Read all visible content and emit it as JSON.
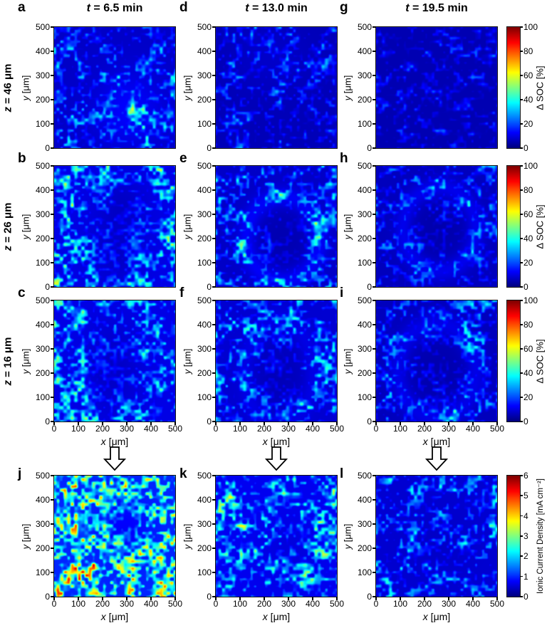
{
  "figure": {
    "background": "#ffffff",
    "columns": [
      {
        "id": "col1",
        "title_var": "t",
        "title_rest": " = 6.5 min",
        "time_min": 6.5
      },
      {
        "id": "col2",
        "title_var": "t",
        "title_rest": " = 13.0 min",
        "time_min": 13.0
      },
      {
        "id": "col3",
        "title_var": "t",
        "title_rest": " = 19.5 min",
        "time_min": 19.5
      }
    ],
    "rows": [
      {
        "id": "row-z46",
        "label_var": "z",
        "label_rest": " = 46 μm",
        "z_um": 46
      },
      {
        "id": "row-z26",
        "label_var": "z",
        "label_rest": " = 26 μm",
        "z_um": 26
      },
      {
        "id": "row-z16",
        "label_var": "z",
        "label_rest": " = 16 μm",
        "z_um": 16
      },
      {
        "id": "row-current",
        "label_var": "",
        "label_rest": ""
      }
    ]
  },
  "axes": {
    "x_var": "x",
    "x_unit": " [μm]",
    "y_var": "y",
    "y_unit": " [μm]",
    "ticks": [
      "0",
      "100",
      "200",
      "300",
      "400",
      "500"
    ]
  },
  "colorbars": {
    "soc": {
      "label": "Δ SOC [%]",
      "ticks": [
        "0",
        "20",
        "40",
        "60",
        "80",
        "100"
      ],
      "min": 0,
      "max": 100
    },
    "current": {
      "label": "Ionic Current Density [mA cm⁻²]",
      "ticks": [
        "0",
        "1",
        "2",
        "3",
        "4",
        "5",
        "6"
      ],
      "min": 0,
      "max": 6
    }
  },
  "icons": {
    "down_arrow": "hollow-down-arrow"
  },
  "colors": {
    "jet_low": "#000080",
    "jet_cyan": "#00ffff",
    "jet_yellow": "#ffff00",
    "jet_high": "#800000",
    "axis_line": "#141414",
    "text": "#000000"
  },
  "chart_data": {
    "type": "heatmap",
    "colormap": "jet",
    "x_range_um": [
      0,
      500
    ],
    "y_range_um": [
      0,
      500
    ],
    "soc_scale_pct": [
      0,
      100
    ],
    "current_scale_mA_cm2": [
      0,
      6
    ],
    "panels": [
      {
        "letter": "a",
        "row": 0,
        "col": 0,
        "quantity": "Δ SOC [%]",
        "time_min": 6.5,
        "z_um": 46,
        "gen": {
          "seed": 11,
          "base": 0.07,
          "amp": 0.4,
          "pow": 1.5,
          "thr": 0.42,
          "spots": [
            {
              "x": 0.62,
              "y": 0.68,
              "rx": 0.26,
              "ry": 0.3,
              "v": 0.16
            }
          ]
        }
      },
      {
        "letter": "d",
        "row": 0,
        "col": 1,
        "quantity": "Δ SOC [%]",
        "time_min": 13.0,
        "z_um": 46,
        "gen": {
          "seed": 12,
          "base": 0.055,
          "amp": 0.33,
          "pow": 1.6,
          "thr": 0.44,
          "spots": [
            {
              "x": 0.45,
              "y": 0.25,
              "rx": 0.3,
              "ry": 0.25,
              "v": 0.05
            }
          ]
        }
      },
      {
        "letter": "g",
        "row": 0,
        "col": 2,
        "quantity": "Δ SOC [%]",
        "time_min": 19.5,
        "z_um": 46,
        "gen": {
          "seed": 13,
          "base": 0.05,
          "amp": 0.24,
          "pow": 1.7,
          "thr": 0.46,
          "spots": []
        }
      },
      {
        "letter": "b",
        "row": 1,
        "col": 0,
        "quantity": "Δ SOC [%]",
        "time_min": 6.5,
        "z_um": 26,
        "gen": {
          "seed": 21,
          "base": 0.1,
          "amp": 0.6,
          "pow": 1.35,
          "thr": 0.4,
          "spots": [
            {
              "x": 0.56,
              "y": 0.34,
              "rx": 0.21,
              "ry": 0.26,
              "v": -0.3
            },
            {
              "x": 0.5,
              "y": 0.72,
              "rx": 0.24,
              "ry": 0.26,
              "v": -0.28
            }
          ]
        }
      },
      {
        "letter": "e",
        "row": 1,
        "col": 1,
        "quantity": "Δ SOC [%]",
        "time_min": 13.0,
        "z_um": 26,
        "gen": {
          "seed": 22,
          "base": 0.07,
          "amp": 0.46,
          "pow": 1.45,
          "thr": 0.42,
          "spots": [
            {
              "x": 0.55,
              "y": 0.6,
              "rx": 0.26,
              "ry": 0.3,
              "v": -0.28,
              "ring": 0.22
            }
          ]
        }
      },
      {
        "letter": "h",
        "row": 1,
        "col": 2,
        "quantity": "Δ SOC [%]",
        "time_min": 19.5,
        "z_um": 26,
        "gen": {
          "seed": 23,
          "base": 0.06,
          "amp": 0.34,
          "pow": 1.5,
          "thr": 0.43,
          "spots": [
            {
              "x": 0.52,
              "y": 0.52,
              "rx": 0.26,
              "ry": 0.3,
              "v": -0.24,
              "ring": 0.2
            }
          ]
        }
      },
      {
        "letter": "c",
        "row": 2,
        "col": 0,
        "quantity": "Δ SOC [%]",
        "time_min": 6.5,
        "z_um": 16,
        "gen": {
          "seed": 31,
          "base": 0.1,
          "amp": 0.56,
          "pow": 1.35,
          "thr": 0.4,
          "spots": [
            {
              "x": 0.48,
              "y": 0.55,
              "rx": 0.24,
              "ry": 0.38,
              "v": -0.3
            }
          ]
        }
      },
      {
        "letter": "f",
        "row": 2,
        "col": 1,
        "quantity": "Δ SOC [%]",
        "time_min": 13.0,
        "z_um": 16,
        "gen": {
          "seed": 32,
          "base": 0.08,
          "amp": 0.48,
          "pow": 1.4,
          "thr": 0.41,
          "spots": [
            {
              "x": 0.52,
              "y": 0.6,
              "rx": 0.24,
              "ry": 0.38,
              "v": -0.28,
              "ring": 0.1
            }
          ]
        }
      },
      {
        "letter": "i",
        "row": 2,
        "col": 2,
        "quantity": "Δ SOC [%]",
        "time_min": 19.5,
        "z_um": 16,
        "gen": {
          "seed": 33,
          "base": 0.06,
          "amp": 0.36,
          "pow": 1.5,
          "thr": 0.43,
          "spots": [
            {
              "x": 0.5,
              "y": 0.58,
              "rx": 0.28,
              "ry": 0.34,
              "v": -0.22,
              "ring": 0.18
            }
          ]
        }
      },
      {
        "letter": "j",
        "row": 3,
        "col": 0,
        "quantity": "Ionic Current Density [mA cm⁻²]",
        "time_min": 6.5,
        "gen": {
          "seed": 41,
          "base": 0.16,
          "amp": 0.88,
          "pow": 1.3,
          "thr": 0.36,
          "spots": [
            {
              "x": 0.58,
              "y": 0.44,
              "rx": 0.22,
              "ry": 0.28,
              "v": -0.22
            }
          ]
        }
      },
      {
        "letter": "k",
        "row": 3,
        "col": 1,
        "quantity": "Ionic Current Density [mA cm⁻²]",
        "time_min": 13.0,
        "gen": {
          "seed": 42,
          "base": 0.11,
          "amp": 0.62,
          "pow": 1.45,
          "thr": 0.4,
          "spots": [
            {
              "x": 0.62,
              "y": 0.62,
              "rx": 0.26,
              "ry": 0.3,
              "v": -0.16
            }
          ]
        }
      },
      {
        "letter": "l",
        "row": 3,
        "col": 2,
        "quantity": "Ionic Current Density [mA cm⁻²]",
        "time_min": 19.5,
        "gen": {
          "seed": 43,
          "base": 0.08,
          "amp": 0.46,
          "pow": 1.55,
          "thr": 0.42,
          "spots": [
            {
              "x": 0.5,
              "y": 0.55,
              "rx": 0.3,
              "ry": 0.3,
              "v": -0.12
            }
          ]
        }
      }
    ]
  }
}
